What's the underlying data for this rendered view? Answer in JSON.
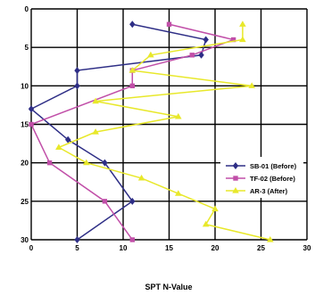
{
  "chart_data": {
    "type": "line",
    "xlabel": "SPT N-Value",
    "ylabel": "",
    "xlim": [
      0,
      30
    ],
    "ylim": [
      0,
      30
    ],
    "y_inverted": true,
    "x_ticks": [
      "0",
      "5",
      "10",
      "15",
      "20",
      "25",
      "30"
    ],
    "y_ticks": [
      "0",
      "5",
      "10",
      "15",
      "20",
      "25",
      "30"
    ],
    "grid": true,
    "legend_position": "right",
    "series": [
      {
        "name": "SB-01 (Before)",
        "color": "#2e2e86",
        "marker": "diamond",
        "points": [
          [
            11,
            2
          ],
          [
            19,
            4
          ],
          [
            18.5,
            6
          ],
          [
            5,
            8
          ],
          [
            5,
            10
          ],
          [
            0,
            13
          ],
          [
            4,
            17
          ],
          [
            8,
            20
          ],
          [
            11,
            25
          ],
          [
            5,
            30
          ]
        ]
      },
      {
        "name": "TF-02 (Before)",
        "color": "#c14fa8",
        "marker": "square",
        "points": [
          [
            15,
            2
          ],
          [
            22,
            4
          ],
          [
            17.5,
            6
          ],
          [
            11,
            8
          ],
          [
            11,
            10
          ],
          [
            0,
            15
          ],
          [
            2,
            20
          ],
          [
            8,
            25
          ],
          [
            11,
            30
          ]
        ]
      },
      {
        "name": "AR-3 (After)",
        "color": "#e8e82a",
        "marker": "triangle",
        "points": [
          [
            23,
            2
          ],
          [
            23,
            4
          ],
          [
            13,
            6
          ],
          [
            11,
            8
          ],
          [
            24,
            10
          ],
          [
            7,
            12
          ],
          [
            16,
            14
          ],
          [
            7,
            16
          ],
          [
            3,
            18
          ],
          [
            6,
            20
          ],
          [
            12,
            22
          ],
          [
            16,
            24
          ],
          [
            20,
            26
          ],
          [
            19,
            28
          ],
          [
            26,
            30
          ]
        ]
      }
    ]
  }
}
